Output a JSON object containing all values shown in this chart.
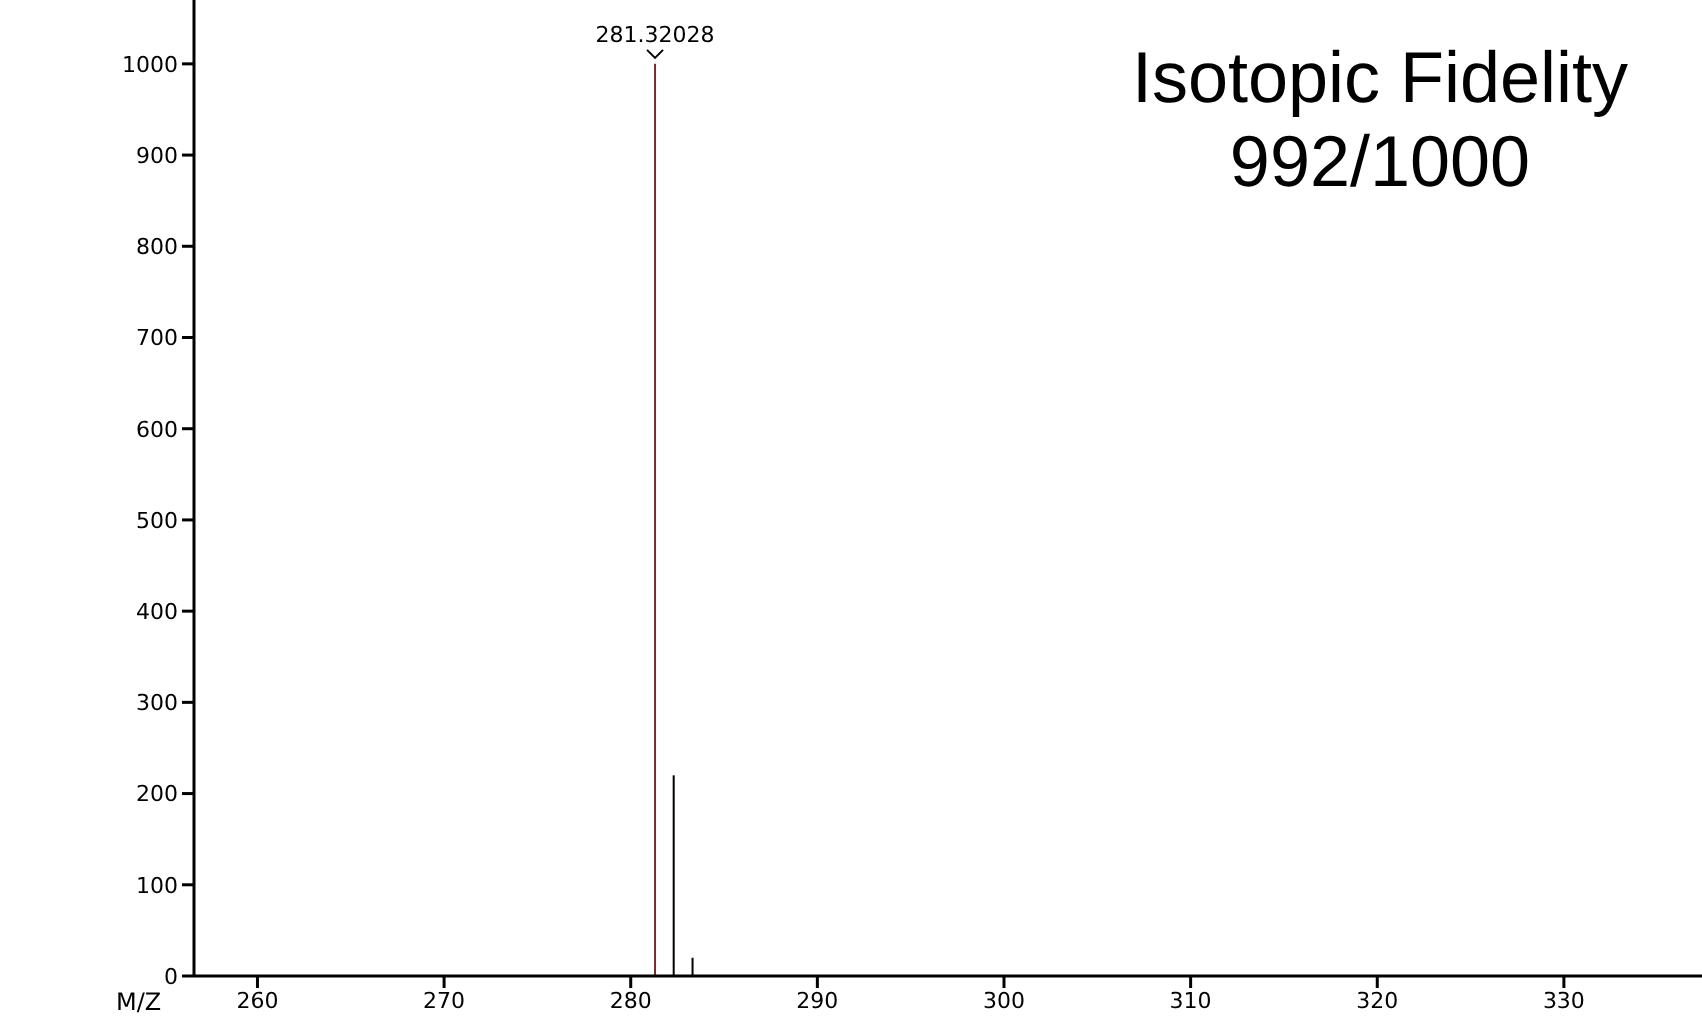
{
  "chart_data": {
    "type": "bar",
    "xlabel": "M/Z",
    "x": [
      281.32028,
      282.32,
      283.33
    ],
    "values": [
      1000,
      220,
      20
    ],
    "colors": [
      "#7b2a2a",
      "#000000",
      "#000000"
    ],
    "xlim": [
      256.6,
      337.4
    ],
    "xticks": [
      260,
      270,
      280,
      290,
      300,
      310,
      320,
      330
    ],
    "ylim": [
      0,
      1070
    ],
    "yticks": [
      0,
      100,
      200,
      300,
      400,
      500,
      600,
      700,
      800,
      900,
      1000
    ],
    "grid": false,
    "legend": false,
    "annotations": [
      "Isotopic Fidelity\n992/1000",
      {
        "text": "281.32028",
        "x": 281.32028,
        "y": 1000
      }
    ]
  }
}
